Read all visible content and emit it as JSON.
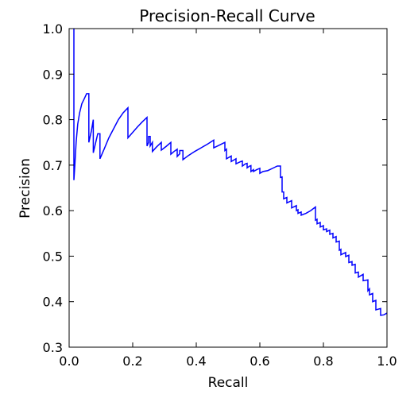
{
  "chart_data": {
    "type": "line",
    "title": "Precision-Recall Curve",
    "xlabel": "Recall",
    "ylabel": "Precision",
    "xlim": [
      0.0,
      1.0
    ],
    "ylim": [
      0.3,
      1.0
    ],
    "xticks": [
      "0.0",
      "0.2",
      "0.4",
      "0.6",
      "0.8",
      "1.0"
    ],
    "yticks": [
      "0.3",
      "0.4",
      "0.5",
      "0.6",
      "0.7",
      "0.8",
      "0.9",
      "1.0"
    ],
    "grid": false,
    "series_color": "#0000ff",
    "series": [
      {
        "x": [
          0.015,
          0.015,
          0.018,
          0.022,
          0.027,
          0.033,
          0.04,
          0.047,
          0.055,
          0.062,
          0.062,
          0.07,
          0.076,
          0.076,
          0.082,
          0.09,
          0.097,
          0.097,
          0.11,
          0.125,
          0.14,
          0.155,
          0.17,
          0.185,
          0.185,
          0.2,
          0.215,
          0.23,
          0.245,
          0.245,
          0.25,
          0.25,
          0.255,
          0.255,
          0.262,
          0.262,
          0.275,
          0.29,
          0.29,
          0.305,
          0.32,
          0.32,
          0.33,
          0.34,
          0.34,
          0.348,
          0.348,
          0.358,
          0.358,
          0.375,
          0.395,
          0.415,
          0.435,
          0.455,
          0.455,
          0.47,
          0.49,
          0.49,
          0.495,
          0.495,
          0.505,
          0.51,
          0.51,
          0.52,
          0.525,
          0.525,
          0.54,
          0.545,
          0.545,
          0.555,
          0.56,
          0.56,
          0.568,
          0.572,
          0.572,
          0.58,
          0.58,
          0.59,
          0.6,
          0.6,
          0.61,
          0.61,
          0.625,
          0.64,
          0.655,
          0.665,
          0.665,
          0.67,
          0.67,
          0.675,
          0.675,
          0.685,
          0.685,
          0.7,
          0.7,
          0.715,
          0.715,
          0.72,
          0.72,
          0.73,
          0.73,
          0.745,
          0.76,
          0.775,
          0.775,
          0.78,
          0.78,
          0.79,
          0.79,
          0.8,
          0.8,
          0.81,
          0.81,
          0.82,
          0.82,
          0.83,
          0.83,
          0.84,
          0.84,
          0.85,
          0.85,
          0.855,
          0.855,
          0.87,
          0.87,
          0.88,
          0.88,
          0.89,
          0.89,
          0.9,
          0.9,
          0.91,
          0.91,
          0.925,
          0.925,
          0.94,
          0.94,
          0.945,
          0.945,
          0.955,
          0.955,
          0.965,
          0.965,
          0.98,
          0.98,
          0.99,
          1.0,
          1.0
        ],
        "y": [
          1.0,
          0.667,
          0.7,
          0.75,
          0.79,
          0.815,
          0.835,
          0.845,
          0.857,
          0.857,
          0.75,
          0.775,
          0.8,
          0.727,
          0.745,
          0.769,
          0.769,
          0.714,
          0.735,
          0.76,
          0.78,
          0.8,
          0.815,
          0.826,
          0.76,
          0.772,
          0.784,
          0.795,
          0.805,
          0.742,
          0.75,
          0.763,
          0.763,
          0.742,
          0.75,
          0.73,
          0.74,
          0.75,
          0.733,
          0.741,
          0.75,
          0.724,
          0.73,
          0.735,
          0.719,
          0.725,
          0.732,
          0.732,
          0.712,
          0.721,
          0.73,
          0.738,
          0.746,
          0.755,
          0.738,
          0.743,
          0.75,
          0.732,
          0.735,
          0.714,
          0.718,
          0.72,
          0.708,
          0.712,
          0.714,
          0.703,
          0.708,
          0.709,
          0.698,
          0.703,
          0.704,
          0.694,
          0.698,
          0.699,
          0.686,
          0.69,
          0.686,
          0.69,
          0.693,
          0.682,
          0.686,
          0.686,
          0.688,
          0.693,
          0.698,
          0.698,
          0.673,
          0.674,
          0.641,
          0.641,
          0.626,
          0.629,
          0.617,
          0.622,
          0.606,
          0.611,
          0.6,
          0.602,
          0.594,
          0.597,
          0.59,
          0.594,
          0.6,
          0.608,
          0.579,
          0.581,
          0.571,
          0.574,
          0.564,
          0.567,
          0.558,
          0.56,
          0.554,
          0.557,
          0.548,
          0.55,
          0.54,
          0.543,
          0.531,
          0.533,
          0.513,
          0.515,
          0.503,
          0.508,
          0.499,
          0.502,
          0.486,
          0.488,
          0.48,
          0.482,
          0.463,
          0.465,
          0.454,
          0.46,
          0.446,
          0.448,
          0.424,
          0.428,
          0.415,
          0.418,
          0.4,
          0.403,
          0.382,
          0.385,
          0.37,
          0.371,
          0.375,
          0.375
        ]
      }
    ]
  }
}
